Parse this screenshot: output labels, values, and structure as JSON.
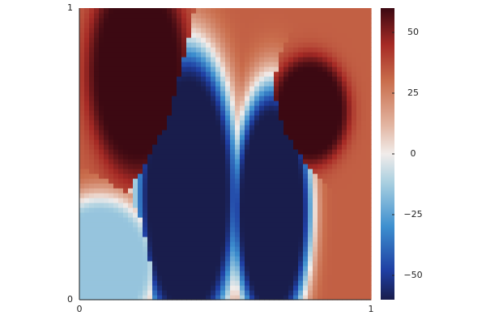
{
  "chart_data": {
    "type": "heatmap",
    "title": "",
    "xlabel": "",
    "ylabel": "",
    "xlim": [
      0,
      1
    ],
    "ylim": [
      0,
      1
    ],
    "x_ticks": [
      0,
      1
    ],
    "x_tick_labels": [
      "0",
      "1"
    ],
    "y_ticks": [
      0,
      1
    ],
    "y_tick_labels": [
      "0",
      "1"
    ],
    "colorbar": {
      "range": [
        -60,
        60
      ],
      "ticks": [
        50,
        25,
        0,
        -25,
        -50
      ],
      "tick_labels": [
        "50",
        "25",
        "0",
        "−25",
        "−50"
      ],
      "colormap": "balance",
      "stops": [
        {
          "value": -60,
          "color": "#191d4c"
        },
        {
          "value": -48,
          "color": "#1f3fa3"
        },
        {
          "value": -30,
          "color": "#3d8fcf"
        },
        {
          "value": -12,
          "color": "#a8cfe0"
        },
        {
          "value": 0,
          "color": "#f1ecea"
        },
        {
          "value": 12,
          "color": "#e2b4a0"
        },
        {
          "value": 30,
          "color": "#c96d4c"
        },
        {
          "value": 45,
          "color": "#a62a25"
        },
        {
          "value": 60,
          "color": "#3c0912"
        }
      ]
    },
    "regions": [
      {
        "name": "upper-left maximum",
        "value": 60,
        "center": [
          0.2,
          0.78
        ],
        "radius": [
          0.13,
          0.27
        ]
      },
      {
        "name": "upper-right maximum",
        "value": 60,
        "center": [
          0.79,
          0.65
        ],
        "radius": [
          0.1,
          0.14
        ]
      },
      {
        "name": "left minimum",
        "value": -60,
        "center": [
          0.37,
          0.36
        ],
        "radius": [
          0.13,
          0.38
        ]
      },
      {
        "name": "right minimum",
        "value": -60,
        "center": [
          0.66,
          0.31
        ],
        "radius": [
          0.1,
          0.32
        ]
      },
      {
        "name": "lower-left low area",
        "value": -15,
        "center": [
          0.07,
          0.12
        ],
        "radius": [
          0.15,
          0.18
        ]
      },
      {
        "name": "background",
        "value": 33
      }
    ]
  }
}
